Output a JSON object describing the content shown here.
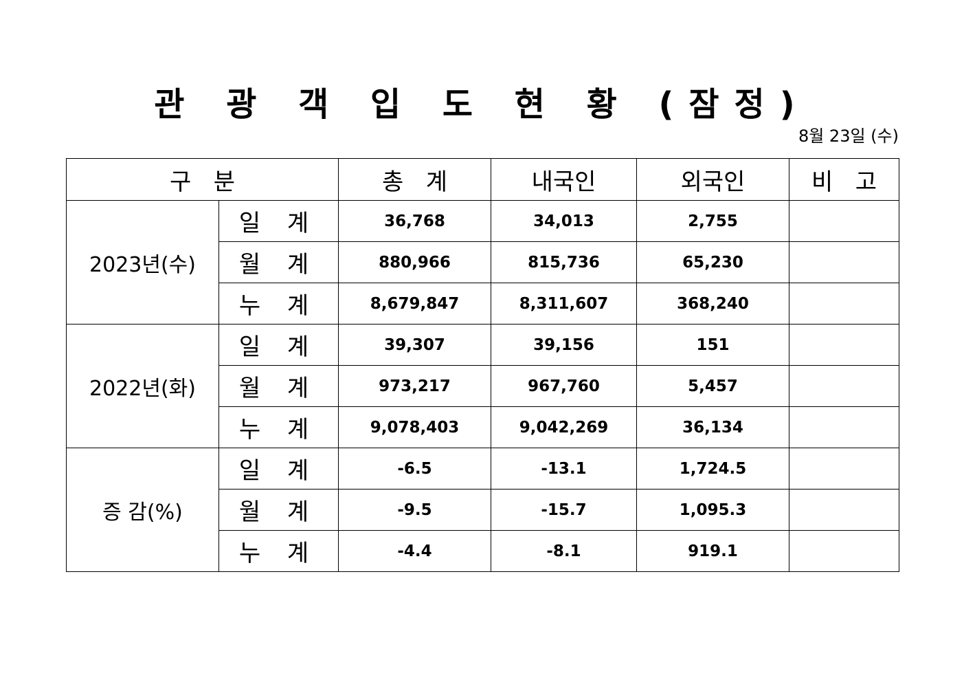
{
  "title": "관 광 객 입 도 현 황 (잠정)",
  "date": "8월 23일 (수)",
  "headers": [
    "구   분",
    "총   계",
    "내국인",
    "외국인",
    "비   고"
  ],
  "groups": [
    {
      "label": "2023년(수)",
      "rows": [
        {
          "sub": "일 계",
          "total": "36,768",
          "domestic": "34,013",
          "foreign": "2,755",
          "note": ""
        },
        {
          "sub": "월 계",
          "total": "880,966",
          "domestic": "815,736",
          "foreign": "65,230",
          "note": ""
        },
        {
          "sub": "누 계",
          "total": "8,679,847",
          "domestic": "8,311,607",
          "foreign": "368,240",
          "note": ""
        }
      ]
    },
    {
      "label": "2022년(화)",
      "rows": [
        {
          "sub": "일 계",
          "total": "39,307",
          "domestic": "39,156",
          "foreign": "151",
          "note": ""
        },
        {
          "sub": "월 계",
          "total": "973,217",
          "domestic": "967,760",
          "foreign": "5,457",
          "note": ""
        },
        {
          "sub": "누 계",
          "total": "9,078,403",
          "domestic": "9,042,269",
          "foreign": "36,134",
          "note": ""
        }
      ]
    },
    {
      "label": "증 감(%)",
      "rows": [
        {
          "sub": "일 계",
          "total": "-6.5",
          "domestic": "-13.1",
          "foreign": "1,724.5",
          "note": ""
        },
        {
          "sub": "월 계",
          "total": "-9.5",
          "domestic": "-15.7",
          "foreign": "1,095.3",
          "note": ""
        },
        {
          "sub": "누 계",
          "total": "-4.4",
          "domestic": "-8.1",
          "foreign": "919.1",
          "note": ""
        }
      ]
    }
  ]
}
